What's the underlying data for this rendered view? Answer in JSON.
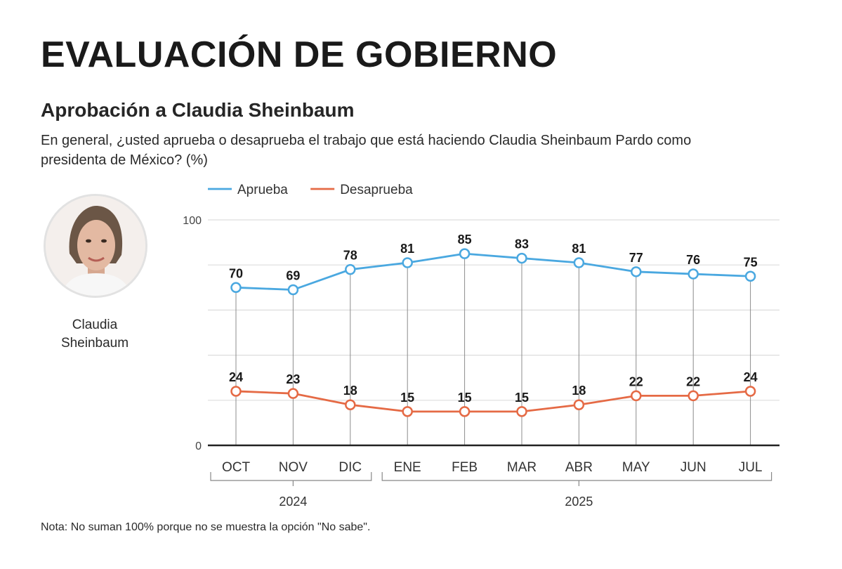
{
  "header": {
    "title": "EVALUACIÓN DE GOBIERNO",
    "subtitle": "Aprobación a Claudia Sheinbaum",
    "question": "En general, ¿usted aprueba o desaprueba el trabajo que está haciendo Claudia Sheinbaum Pardo como presidenta de México?  (%)"
  },
  "person": {
    "name_line1": "Claudia",
    "name_line2": "Sheinbaum"
  },
  "note": "Nota: No suman 100% porque no se muestra la opción \"No sabe\".",
  "colors": {
    "approve": "#4aa8e0",
    "disapprove": "#e56a45",
    "grid": "#dddddd",
    "axis": "#222222",
    "guide": "#8c8c8c"
  },
  "chart_data": {
    "type": "line",
    "categories": [
      "OCT",
      "NOV",
      "DIC",
      "ENE",
      "FEB",
      "MAR",
      "ABR",
      "MAY",
      "JUN",
      "JUL"
    ],
    "groups": [
      {
        "label": "2024",
        "from": 0,
        "to": 2
      },
      {
        "label": "2025",
        "from": 3,
        "to": 9
      }
    ],
    "series": [
      {
        "name": "Aprueba",
        "color": "#4aa8e0",
        "values": [
          70,
          69,
          78,
          81,
          85,
          83,
          81,
          77,
          76,
          75
        ]
      },
      {
        "name": "Desaprueba",
        "color": "#e56a45",
        "values": [
          24,
          23,
          18,
          15,
          15,
          15,
          18,
          22,
          22,
          24
        ]
      }
    ],
    "ylim": [
      0,
      100
    ],
    "yticks": [
      0,
      100
    ],
    "gridlines": [
      20,
      40,
      60,
      80,
      100
    ],
    "legend": "top-left",
    "title": "Aprobación a Claudia Sheinbaum",
    "xlabel": "",
    "ylabel": "%"
  }
}
